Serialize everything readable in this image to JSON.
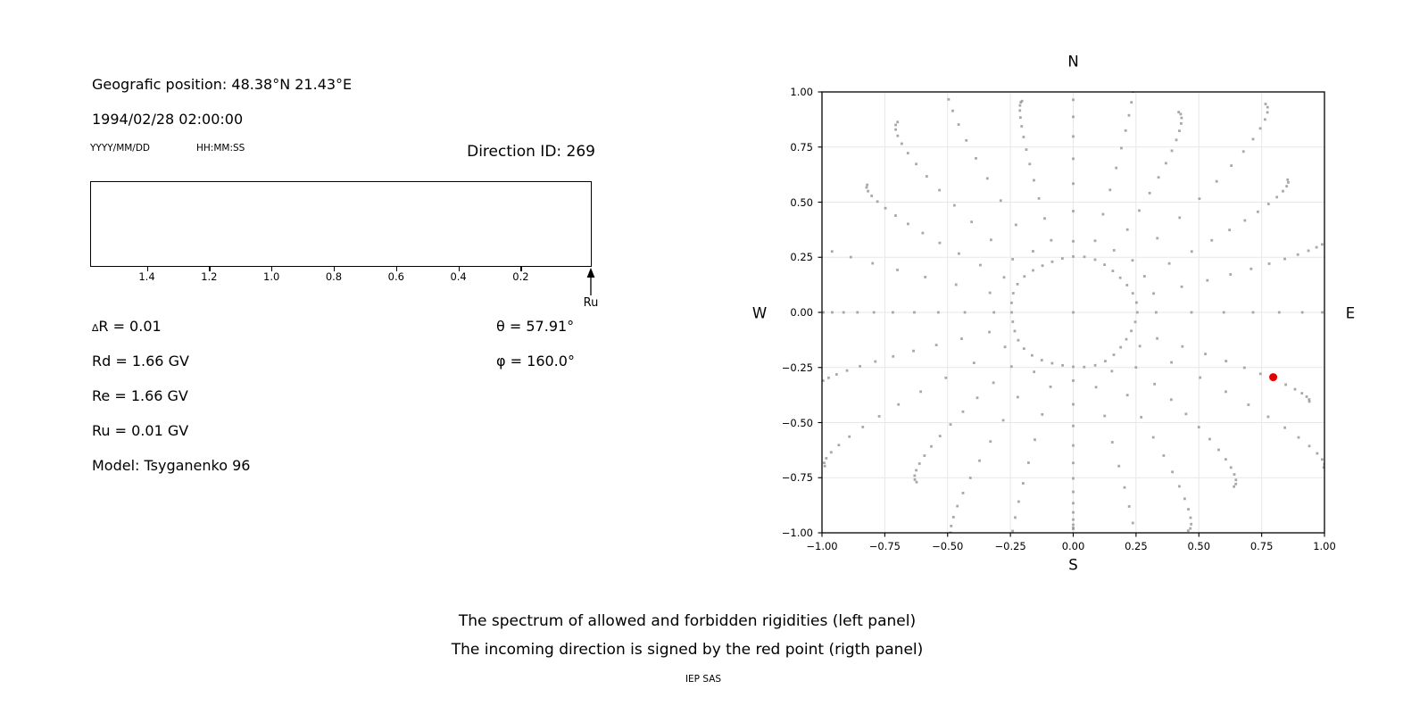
{
  "header": {
    "geographic_position": "Geografic position: 48.38°N 21.43°E",
    "datetime": "1994/02/28 02:00:00",
    "date_format_label": "YYYY/MM/DD",
    "time_format_label": "HH:MM:SS",
    "direction_id": "Direction ID: 269"
  },
  "spectrum_panel": {
    "arrow_label": "Ru",
    "params": [
      {
        "prefix": "∆",
        "text": "R = 0.01"
      },
      {
        "prefix": "",
        "text": "Rd = 1.66 GV"
      },
      {
        "prefix": "",
        "text": "Re = 1.66 GV"
      },
      {
        "prefix": "",
        "text": "Ru = 0.01 GV"
      },
      {
        "prefix": "",
        "text": "Model: Tsyganenko 96"
      }
    ],
    "angles": [
      "θ = 57.91°",
      "φ = 160.0°"
    ]
  },
  "direction_panel": {
    "compass": {
      "north": "N",
      "south": "S",
      "east": "E",
      "west": "W"
    }
  },
  "captions": {
    "line1": "The spectrum of allowed and forbidden rigidities (left panel)",
    "line2": "The incoming direction is signed by the red point (rigth panel)",
    "credit": "IEP SAS"
  },
  "chart_data": [
    {
      "id": "rigidity-spectrum",
      "type": "scatter",
      "description": "empty spectrum strip of allowed/forbidden rigidities, rigidity axis reversed",
      "x_axis": {
        "range": [
          1.582,
          -0.028
        ],
        "ticks": [
          {
            "label": "1.4",
            "value": 1.4
          },
          {
            "label": "1.2",
            "value": 1.2
          },
          {
            "label": "1.0",
            "value": 1.0
          },
          {
            "label": "0.8",
            "value": 0.8
          },
          {
            "label": "0.6",
            "value": 0.6
          },
          {
            "label": "0.4",
            "value": 0.4
          },
          {
            "label": "0.2",
            "value": 0.2
          }
        ]
      },
      "annotations": [
        {
          "type": "arrow-up",
          "label": "Ru",
          "position": "axis-end"
        }
      ]
    },
    {
      "id": "asymptotic-directions",
      "type": "scatter",
      "grid": true,
      "x_axis": {
        "range": [
          -1,
          1
        ],
        "tick_values": [
          -1,
          -0.75,
          -0.5,
          -0.25,
          0,
          0.25,
          0.5,
          0.75,
          1
        ],
        "tick_labels": [
          "−1.00",
          "−0.75",
          "−0.50",
          "−0.25",
          "0.00",
          "0.25",
          "0.50",
          "0.75",
          "1.00"
        ]
      },
      "y_axis": {
        "range": [
          -1,
          1
        ],
        "tick_values": [
          1,
          0.75,
          0.5,
          0.25,
          0,
          -0.25,
          -0.5,
          -0.75,
          -1
        ],
        "tick_labels": [
          "1.00",
          "0.75",
          "0.50",
          "0.25",
          "0.00",
          "−0.25",
          "−0.50",
          "−0.75",
          "−1.00"
        ]
      },
      "dot_color": "#999999",
      "grid_color": "#e7e7e7",
      "red_point": {
        "x": 0.796,
        "y": -0.294,
        "color": "#e50000"
      },
      "center_point": {
        "x": 0,
        "y": 0
      },
      "inner_ring": {
        "radius": 0.25,
        "count": 36
      },
      "spokes": {
        "count": 24,
        "step_deg": 15,
        "r_inner": 0.33,
        "r_outer_base": 1.1,
        "r_outer_amp": 0.12,
        "dots": 13,
        "curve_deg": 6,
        "angle_offset_overrides": {
          "23": -4.5
        }
      }
    }
  ]
}
